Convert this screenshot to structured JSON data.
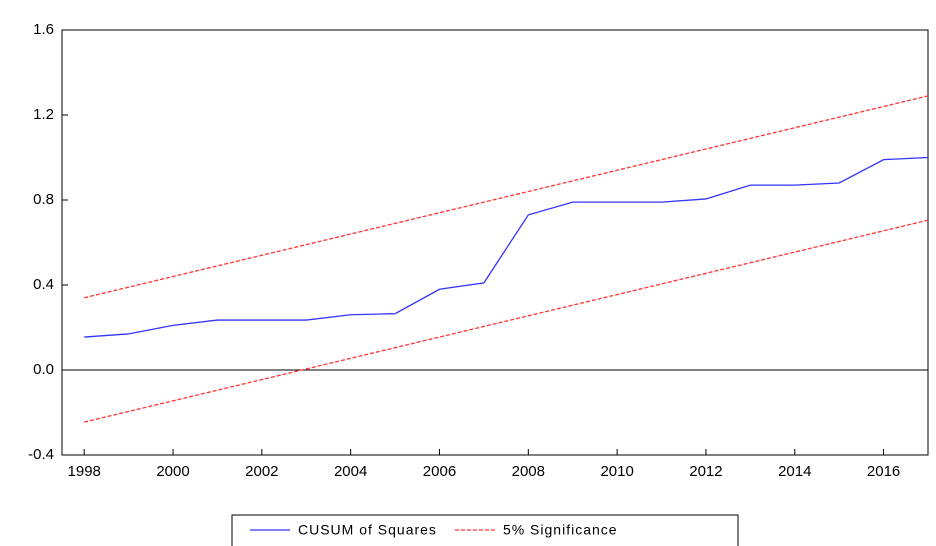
{
  "chart_data": {
    "type": "line",
    "x": [
      1998,
      1999,
      2000,
      2001,
      2002,
      2003,
      2004,
      2005,
      2006,
      2007,
      2008,
      2009,
      2010,
      2011,
      2012,
      2013,
      2014,
      2015,
      2016,
      2017
    ],
    "series": [
      {
        "name": "CUSUM of Squares",
        "color": "#3333ff",
        "style": "solid",
        "values": [
          0.155,
          0.17,
          0.21,
          0.235,
          0.235,
          0.235,
          0.26,
          0.265,
          0.38,
          0.41,
          0.73,
          0.79,
          0.79,
          0.79,
          0.805,
          0.87,
          0.87,
          0.88,
          0.99,
          1.0
        ]
      },
      {
        "name": "5% Significance",
        "color": "#ff3333",
        "style": "dashed",
        "values": [
          0.34,
          0.39,
          0.44,
          0.49,
          0.54,
          0.59,
          0.64,
          0.69,
          0.74,
          0.79,
          0.84,
          0.89,
          0.94,
          0.99,
          1.04,
          1.09,
          1.14,
          1.19,
          1.24,
          1.29
        ],
        "lower": [
          -0.245,
          -0.195,
          -0.145,
          -0.095,
          -0.045,
          0.005,
          0.055,
          0.105,
          0.155,
          0.205,
          0.255,
          0.305,
          0.355,
          0.405,
          0.455,
          0.505,
          0.555,
          0.605,
          0.655,
          0.705
        ]
      }
    ],
    "xlim": [
      1997.5,
      2017
    ],
    "xticks": [
      1998,
      2000,
      2002,
      2004,
      2006,
      2008,
      2010,
      2012,
      2014,
      2016
    ],
    "ylim": [
      -0.4,
      1.6
    ],
    "yticks": [
      -0.4,
      {
        "value": 0,
        "label": "0.0"
      },
      0.4,
      0.8,
      1.2,
      1.6
    ],
    "zero_line": true,
    "legend": "bottom"
  }
}
